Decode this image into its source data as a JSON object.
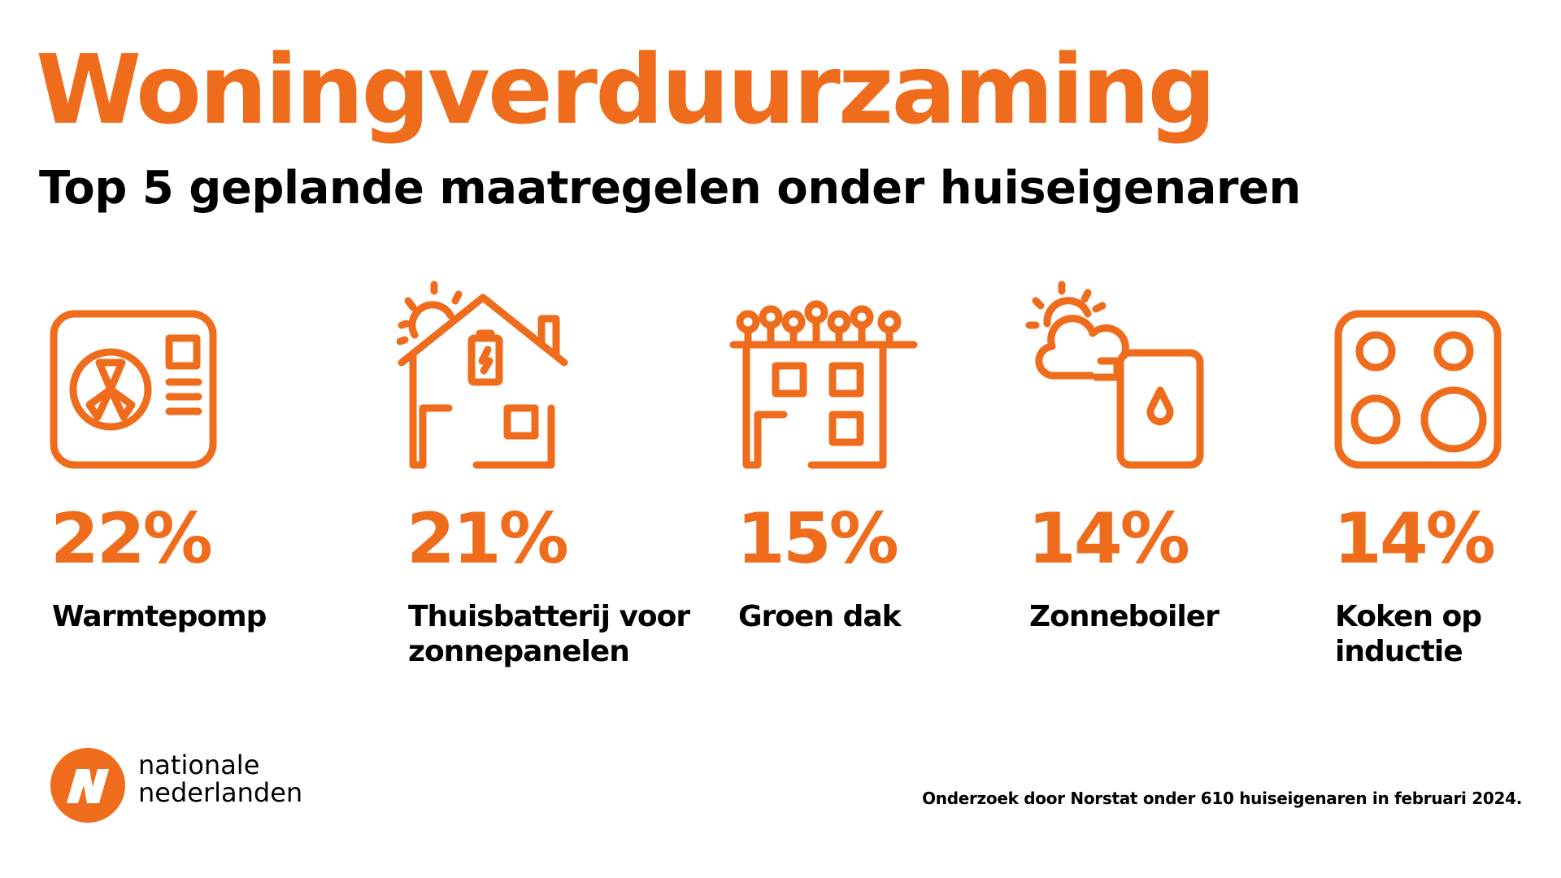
{
  "header": {
    "title": "Woningverduurzaming",
    "subtitle": "Top 5 geplande maatregelen onder huiseigenaren"
  },
  "items": [
    {
      "icon": "heat-pump-icon",
      "percentage": "22%",
      "label": "Warmtepomp"
    },
    {
      "icon": "house-battery-sun-icon",
      "percentage": "21%",
      "label": "Thuisbatterij voor\nzonnepanelen"
    },
    {
      "icon": "green-roof-icon",
      "percentage": "15%",
      "label": "Groen dak"
    },
    {
      "icon": "solar-boiler-icon",
      "percentage": "14%",
      "label": "Zonneboiler"
    },
    {
      "icon": "induction-cooktop-icon",
      "percentage": "14%",
      "label": "Koken op\ninductie"
    }
  ],
  "brand": {
    "name_line1": "nationale",
    "name_line2": "nederlanden",
    "logo_icon": "nn-logo-icon",
    "accent_color": "#ee6c1b"
  },
  "footnote": "Onderzoek door Norstat onder 610 huiseigenaren in februari 2024."
}
